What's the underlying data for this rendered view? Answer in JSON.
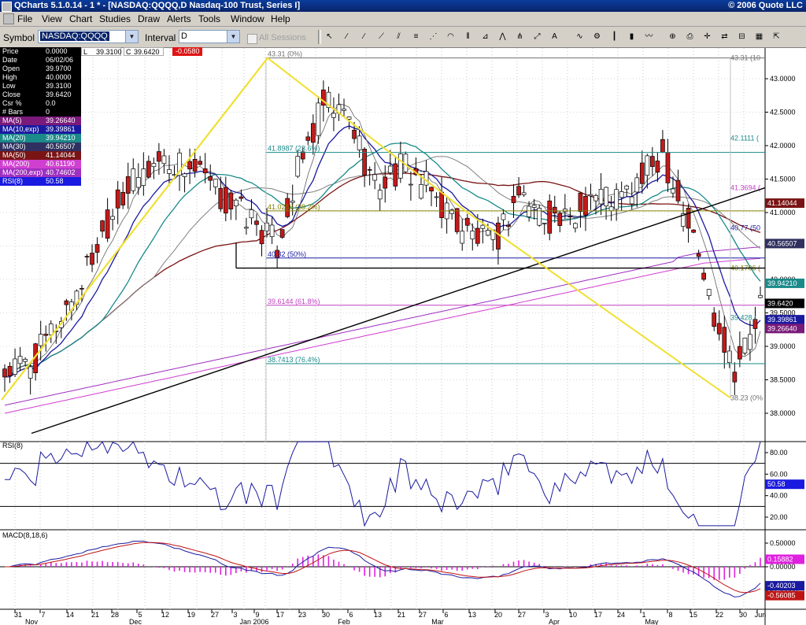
{
  "window": {
    "title": "QCharts 5.1.0.14 - 1 * - [NASDAQ:QQQQ,D Nasdaq-100 Trust, Series I]",
    "copyright": "© 2006 Quote LLC"
  },
  "menu": [
    "File",
    "View",
    "Chart",
    "Studies",
    "Draw",
    "Alerts",
    "Tools",
    "Window",
    "Help"
  ],
  "toolbar": {
    "symbol_label": "Symbol",
    "symbol_value": "NASDAQ:QQQQ",
    "interval_label": "Interval",
    "interval_value": "D",
    "all_sessions_label": "All Sessions",
    "ohlc_l_label": "L",
    "ohlc_l_value": "39.3100",
    "ohlc_c_label": "C",
    "ohlc_c_value": "39.6420",
    "ohlc_chg_value": "-0.0580",
    "icons": [
      "pointer-icon",
      "line-icon",
      "ray-icon",
      "extended-line-icon",
      "channel-icon",
      "fib-retracement-icon",
      "fib-fan-icon",
      "fib-arc-icon",
      "fib-time-icon",
      "gann-icon",
      "speed-line-icon",
      "andrews-pitchfork-icon",
      "regression-icon",
      "text-icon",
      "cycle-icon",
      "chart-settings-icon",
      "bar-style-icon",
      "candle-style-icon",
      "line-style-icon",
      "zoom-icon",
      "print-icon",
      "crosshair-icon",
      "compare-icon",
      "split-icon",
      "grid-icon",
      "export-icon"
    ]
  },
  "info_panel": [
    {
      "label": "Price",
      "value": "0.0000",
      "bg": "#000000",
      "fg": "#ffffff"
    },
    {
      "label": "Date",
      "value": "06/02/06",
      "bg": "#000000",
      "fg": "#ffffff"
    },
    {
      "label": "Open",
      "value": "39.9700",
      "bg": "#000000",
      "fg": "#ffffff"
    },
    {
      "label": "High",
      "value": "40.0000",
      "bg": "#000000",
      "fg": "#ffffff"
    },
    {
      "label": "Low",
      "value": "39.3100",
      "bg": "#000000",
      "fg": "#ffffff"
    },
    {
      "label": "Close",
      "value": "39.6420",
      "bg": "#000000",
      "fg": "#ffffff"
    },
    {
      "label": "Csr %",
      "value": "0.0",
      "bg": "#000000",
      "fg": "#ffffff"
    },
    {
      "label": "# Bars",
      "value": "0",
      "bg": "#000000",
      "fg": "#ffffff"
    },
    {
      "label": "MA(5)",
      "value": "39.26640",
      "bg": "#7a1a7a",
      "fg": "#ffffff"
    },
    {
      "label": "MA(10,exp)",
      "value": "39.39861",
      "bg": "#1a1aa0",
      "fg": "#ffffff"
    },
    {
      "label": "MA(20)",
      "value": "39.94210",
      "bg": "#1a8a8a",
      "fg": "#ffffff"
    },
    {
      "label": "MA(30)",
      "value": "40.56507",
      "bg": "#303060",
      "fg": "#ffffff"
    },
    {
      "label": "MA(50)",
      "value": "41.14044",
      "bg": "#7a1414",
      "fg": "#ffffff"
    },
    {
      "label": "MA(200)",
      "value": "40.61190",
      "bg": "#d040d0",
      "fg": "#ffffff"
    },
    {
      "label": "MA(200,exp)",
      "value": "40.74602",
      "bg": "#a030c0",
      "fg": "#ffffff"
    },
    {
      "label": "RSI(8)",
      "value": "50.58",
      "bg": "#1a1ae0",
      "fg": "#ffffff"
    }
  ],
  "price_pane": {
    "axis_labels": [
      "43.0000",
      "42.5000",
      "42.0000",
      "41.5000",
      "41.0000",
      "40.0000",
      "39.5000",
      "39.0000",
      "38.5000",
      "38.0000"
    ],
    "right_tags": [
      {
        "text": "41.14044",
        "bg": "#7a1414"
      },
      {
        "text": "40.56507",
        "bg": "#303060"
      },
      {
        "text": "39.94210",
        "bg": "#1a8a8a"
      },
      {
        "text": "39.6420",
        "bg": "#000000"
      },
      {
        "text": "39.39861",
        "bg": "#1a1aa0"
      },
      {
        "text": "39.26640",
        "bg": "#7a1a7a"
      }
    ],
    "fib_left": [
      {
        "text": "43.31 (0%)",
        "color": "#707070"
      },
      {
        "text": "41.8987 (23.6%)",
        "color": "#1a8a8a"
      },
      {
        "text": "41.0256 (38.2%)",
        "color": "#808000"
      },
      {
        "text": "40.32 (50%)",
        "color": "#1a1aa0"
      },
      {
        "text": "39.6144 (61.8%)",
        "color": "#c040c0"
      },
      {
        "text": "38.7413 (76.4%)",
        "color": "#1a8a8a"
      }
    ],
    "fib_right": [
      {
        "text": "43.31 (10",
        "color": "#707070"
      },
      {
        "text": "42.1111 (",
        "color": "#1a8a8a"
      },
      {
        "text": "41.3694 (",
        "color": "#c040c0"
      },
      {
        "text": "40.77 (50",
        "color": "#1a1aa0"
      },
      {
        "text": "40.1706 (",
        "color": "#808000"
      },
      {
        "text": "39.428 (",
        "color": "#1a8a8a"
      },
      {
        "text": "38.23 (0%",
        "color": "#707070"
      }
    ]
  },
  "rsi_pane": {
    "title": "RSI(8)",
    "axis_labels": [
      "80.00",
      "60.00",
      "40.00",
      "20.00"
    ],
    "tag": "50.58",
    "tag_bg": "#1a1ae0"
  },
  "macd_pane": {
    "title": "MACD(8,18,6)",
    "axis_labels": [
      "0.50000",
      "0.00000",
      "-0.50000"
    ],
    "tags": [
      {
        "text": "0.15882",
        "bg": "#e020e0"
      },
      {
        "text": "-0.40203",
        "bg": "#1a1aa0"
      },
      {
        "text": "-0.56085",
        "bg": "#c01414"
      }
    ]
  },
  "x_axis": {
    "day_labels": [
      "31",
      "7",
      "14",
      "21",
      "28",
      "5",
      "12",
      "19",
      "27",
      "3",
      "9",
      "17",
      "23",
      "30",
      "6",
      "13",
      "21",
      "27",
      "6",
      "13",
      "20",
      "27",
      "3",
      "10",
      "17",
      "24",
      "1",
      "8",
      "15",
      "22",
      "30",
      "Jun"
    ],
    "month_labels": [
      "Nov",
      "Dec",
      "Jan 2006",
      "Feb",
      "Mar",
      "Apr",
      "May"
    ]
  },
  "colors": {
    "up_candle": "#ffffff",
    "down_candle": "#c41a1a",
    "fib_line": "#f0e030",
    "trend_line": "#000000"
  }
}
